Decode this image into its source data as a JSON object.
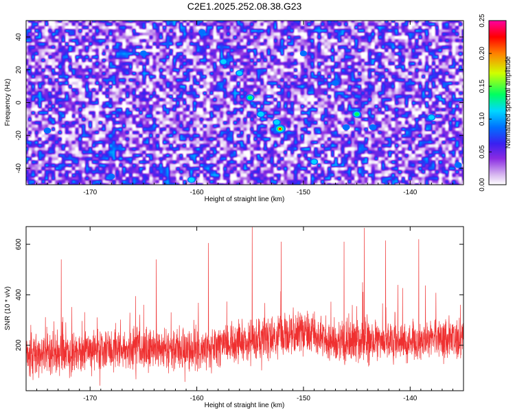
{
  "title": "C2E1.2025.252.08.38.G23",
  "chart_data": [
    {
      "type": "heatmap",
      "xlabel": "Height of straight line (km)",
      "ylabel": "Frequency (Hz)",
      "xlim": [
        -176,
        -135
      ],
      "ylim": [
        -50,
        50
      ],
      "xticks": [
        -170,
        -160,
        -150,
        -140
      ],
      "xtick_labels": [
        "-170",
        "-160",
        "-150",
        "-140"
      ],
      "yticks": [
        -40,
        -20,
        0,
        20,
        40
      ],
      "ytick_labels": [
        "-40",
        "-20",
        "0",
        "20",
        "40"
      ],
      "colorbar": {
        "label": "Normalized spectral amplitude",
        "range": [
          0,
          0.25
        ],
        "ticks": [
          0,
          0.05,
          0.1,
          0.15,
          0.2,
          0.25
        ],
        "tick_labels": [
          "0.00",
          "0.05",
          "0.10",
          "0.15",
          "0.20",
          "0.25"
        ],
        "colors": [
          "#ffffff",
          "#d8b8f0",
          "#8a2be2",
          "#3a20f0",
          "#0070ff",
          "#00d8ff",
          "#00ff60",
          "#d0ff00",
          "#ff8000",
          "#ff0000",
          "#ff00a0"
        ]
      },
      "peaks": [
        {
          "x": -152.2,
          "y": -16,
          "value": 0.22
        },
        {
          "x": -155,
          "y": 3,
          "value": 0.14
        },
        {
          "x": -154,
          "y": -7,
          "value": 0.13
        },
        {
          "x": -152.5,
          "y": -12,
          "value": 0.12
        },
        {
          "x": -145,
          "y": -7,
          "value": 0.15
        },
        {
          "x": -157.5,
          "y": 25,
          "value": 0.12
        },
        {
          "x": -156,
          "y": 18,
          "value": 0.11
        },
        {
          "x": -160.5,
          "y": -47,
          "value": 0.12
        },
        {
          "x": -149,
          "y": -36,
          "value": 0.11
        },
        {
          "x": -146,
          "y": -15,
          "value": 0.1
        },
        {
          "x": -138,
          "y": -9,
          "value": 0.12
        },
        {
          "x": -143.5,
          "y": -15,
          "value": 0.1
        },
        {
          "x": -135.5,
          "y": -38,
          "value": 0.1
        },
        {
          "x": -174,
          "y": -17,
          "value": 0.1
        },
        {
          "x": -165,
          "y": 30,
          "value": 0.09
        },
        {
          "x": -147,
          "y": 12,
          "value": 0.09
        },
        {
          "x": -168,
          "y": -45,
          "value": 0.09
        },
        {
          "x": -159.5,
          "y": 43,
          "value": 0.09
        },
        {
          "x": -150,
          "y": 30,
          "value": 0.09
        }
      ]
    },
    {
      "type": "line",
      "xlabel": "Height of straight line (km)",
      "ylabel": "SNR (10 * v/v)",
      "xlim": [
        -176,
        -135
      ],
      "ylim": [
        20,
        670
      ],
      "xticks": [
        -170,
        -160,
        -150,
        -140
      ],
      "xtick_labels": [
        "-170",
        "-160",
        "-150",
        "-140"
      ],
      "yticks": [
        200,
        400,
        600
      ],
      "ytick_labels": [
        "200",
        "400",
        "600"
      ],
      "series": [
        {
          "name": "SNR",
          "color": "#ef3030",
          "baseline": [
            [
              -176,
              150
            ],
            [
              -170,
              175
            ],
            [
              -165,
              185
            ],
            [
              -160,
              180
            ],
            [
              -155,
              220
            ],
            [
              -150,
              240
            ],
            [
              -146,
              220
            ],
            [
              -143,
              215
            ],
            [
              -140,
              215
            ],
            [
              -135,
              225
            ]
          ],
          "spread": 80,
          "peaks": [
            [
              -172.7,
              540
            ],
            [
              -163.8,
              540
            ],
            [
              -158.9,
              605
            ],
            [
              -154.8,
              668
            ],
            [
              -152.1,
              610
            ],
            [
              -146.2,
              610
            ],
            [
              -144.3,
              665
            ],
            [
              -142.3,
              615
            ],
            [
              -139.2,
              620
            ]
          ]
        }
      ]
    }
  ]
}
